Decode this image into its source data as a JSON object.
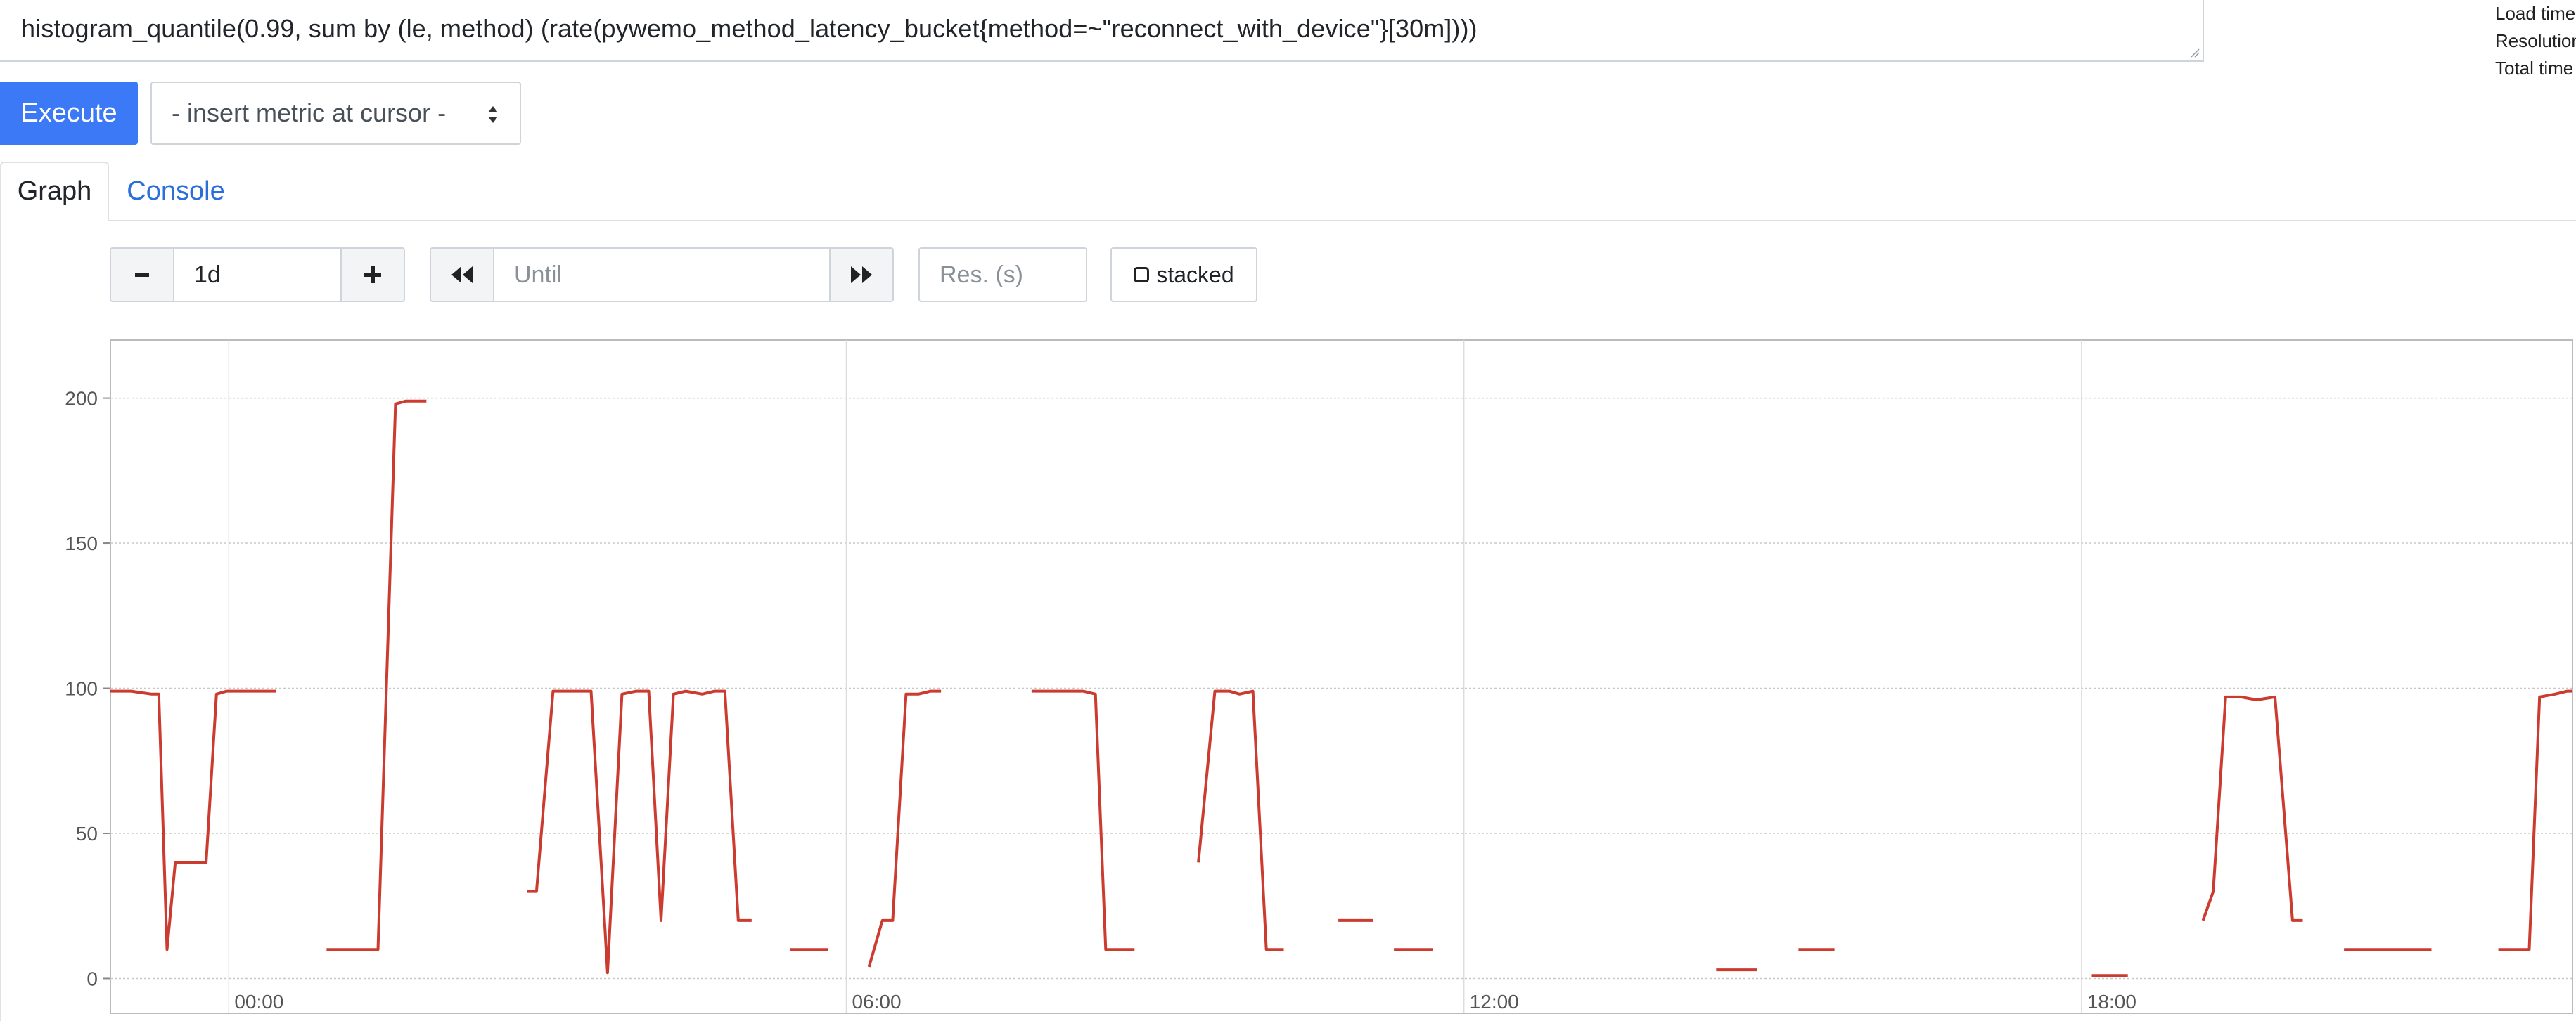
{
  "query": {
    "expression": "histogram_quantile(0.99, sum by (le, method) (rate(pywemo_method_latency_bucket{method=~\"reconnect_with_device\"}[30m])))"
  },
  "stats": {
    "load_time_label": "Load time",
    "resolution_label": "Resolution",
    "total_time_label": "Total time"
  },
  "toolbar": {
    "execute_label": "Execute",
    "metric_select_value": "- insert metric at cursor -"
  },
  "tabs": [
    {
      "label": "Graph",
      "active": true
    },
    {
      "label": "Console",
      "active": false
    }
  ],
  "graph_controls": {
    "range_value": "1d",
    "until_placeholder": "Until",
    "resolution_placeholder": "Res. (s)",
    "stacked_label": "stacked"
  },
  "colors": {
    "execute_button": "#3b79f6",
    "series_line": "#cc3b2f",
    "console_tab": "#2a6fdb"
  },
  "chart_data": {
    "type": "line",
    "title": "",
    "xlabel": "",
    "ylabel": "",
    "x_unit": "hours relative to 00:00",
    "xlim": [
      -1.15,
      22.77
    ],
    "ylim": [
      -12,
      220
    ],
    "x_ticks": [
      {
        "value": 0,
        "label": "00:00"
      },
      {
        "value": 6,
        "label": "06:00"
      },
      {
        "value": 12,
        "label": "12:00"
      },
      {
        "value": 18,
        "label": "18:00"
      }
    ],
    "y_ticks": [
      {
        "value": 0,
        "label": "0"
      },
      {
        "value": 50,
        "label": "50"
      },
      {
        "value": 100,
        "label": "100"
      },
      {
        "value": 150,
        "label": "150"
      },
      {
        "value": 200,
        "label": "200"
      }
    ],
    "grid": true,
    "legend": "none",
    "series": [
      {
        "segments": [
          [
            [
              -1.15,
              99
            ],
            [
              -0.95,
              99
            ],
            [
              -0.75,
              98
            ],
            [
              -0.68,
              98
            ],
            [
              -0.6,
              10
            ],
            [
              -0.52,
              40
            ],
            [
              -0.22,
              40
            ],
            [
              -0.12,
              98
            ],
            [
              -0.02,
              99
            ],
            [
              0.46,
              99
            ]
          ],
          [
            [
              0.95,
              10
            ],
            [
              1.45,
              10
            ],
            [
              1.62,
              198
            ],
            [
              1.72,
              199
            ],
            [
              1.92,
              199
            ]
          ],
          [
            [
              2.9,
              30
            ],
            [
              2.99,
              30
            ],
            [
              3.15,
              99
            ],
            [
              3.52,
              99
            ],
            [
              3.68,
              2
            ],
            [
              3.82,
              98
            ],
            [
              3.96,
              99
            ],
            [
              4.08,
              99
            ],
            [
              4.2,
              20
            ],
            [
              4.32,
              98
            ],
            [
              4.44,
              99
            ],
            [
              4.6,
              98
            ],
            [
              4.72,
              99
            ],
            [
              4.82,
              99
            ],
            [
              4.95,
              20
            ],
            [
              5.08,
              20
            ]
          ],
          [
            [
              5.45,
              10
            ],
            [
              5.82,
              10
            ]
          ],
          [
            [
              6.22,
              4
            ],
            [
              6.35,
              20
            ],
            [
              6.45,
              20
            ],
            [
              6.58,
              98
            ],
            [
              6.7,
              98
            ],
            [
              6.82,
              99
            ],
            [
              6.92,
              99
            ]
          ],
          [
            [
              7.8,
              99
            ],
            [
              8.3,
              99
            ],
            [
              8.42,
              98
            ],
            [
              8.52,
              10
            ],
            [
              8.8,
              10
            ]
          ],
          [
            [
              9.42,
              40
            ],
            [
              9.58,
              99
            ],
            [
              9.72,
              99
            ],
            [
              9.82,
              98
            ],
            [
              9.95,
              99
            ],
            [
              10.08,
              10
            ],
            [
              10.25,
              10
            ]
          ],
          [
            [
              10.78,
              20
            ],
            [
              11.12,
              20
            ]
          ],
          [
            [
              11.32,
              10
            ],
            [
              11.7,
              10
            ]
          ],
          [
            [
              14.45,
              3
            ],
            [
              14.85,
              3
            ]
          ],
          [
            [
              15.25,
              10
            ],
            [
              15.6,
              10
            ]
          ],
          [
            [
              18.1,
              1
            ],
            [
              18.45,
              1
            ]
          ],
          [
            [
              19.18,
              20
            ],
            [
              19.28,
              30
            ],
            [
              19.4,
              97
            ],
            [
              19.55,
              97
            ],
            [
              19.7,
              96
            ],
            [
              19.88,
              97
            ],
            [
              20.05,
              20
            ],
            [
              20.15,
              20
            ]
          ],
          [
            [
              20.55,
              10
            ],
            [
              21.4,
              10
            ]
          ],
          [
            [
              22.05,
              10
            ],
            [
              22.35,
              10
            ],
            [
              22.45,
              97
            ],
            [
              22.6,
              98
            ],
            [
              22.72,
              99
            ],
            [
              22.77,
              99
            ]
          ]
        ],
        "color": "#cc3b2f"
      }
    ]
  }
}
